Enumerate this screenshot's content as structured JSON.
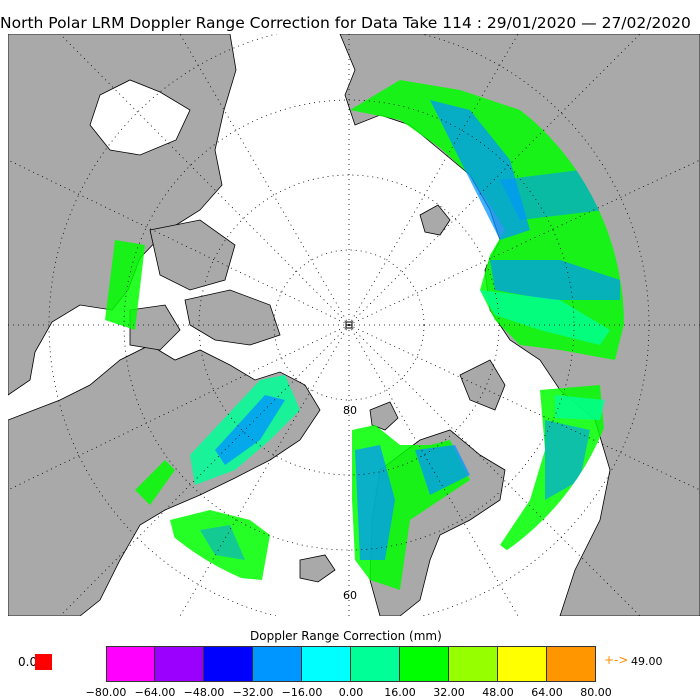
{
  "title": "North Polar LRM Doppler Range Correction for Data Take 114 : 29/01/2020 — 27/02/2020",
  "map": {
    "latitude_labels": [
      "80",
      "60"
    ],
    "pole_marker": "pole-cross-marker",
    "land_color": "#a9a9a9",
    "ocean_color": "#ffffff"
  },
  "colorbar": {
    "title": "Doppler Range Correction (mm)",
    "colors": [
      "#ff00ff",
      "#9b00ff",
      "#0000ff",
      "#0096ff",
      "#00ffff",
      "#00ff96",
      "#00ff00",
      "#96ff00",
      "#ffff00",
      "#ff9600"
    ],
    "tick_labels": [
      "−80.00",
      "−64.00",
      "−48.00",
      "−32.00",
      "−16.00",
      "0.00",
      "16.00",
      "32.00",
      "48.00",
      "64.00",
      "80.00"
    ],
    "min_value": "0.0",
    "min_color": "#ff0000",
    "max_arrow": "+->",
    "max_value": "49.00"
  }
}
